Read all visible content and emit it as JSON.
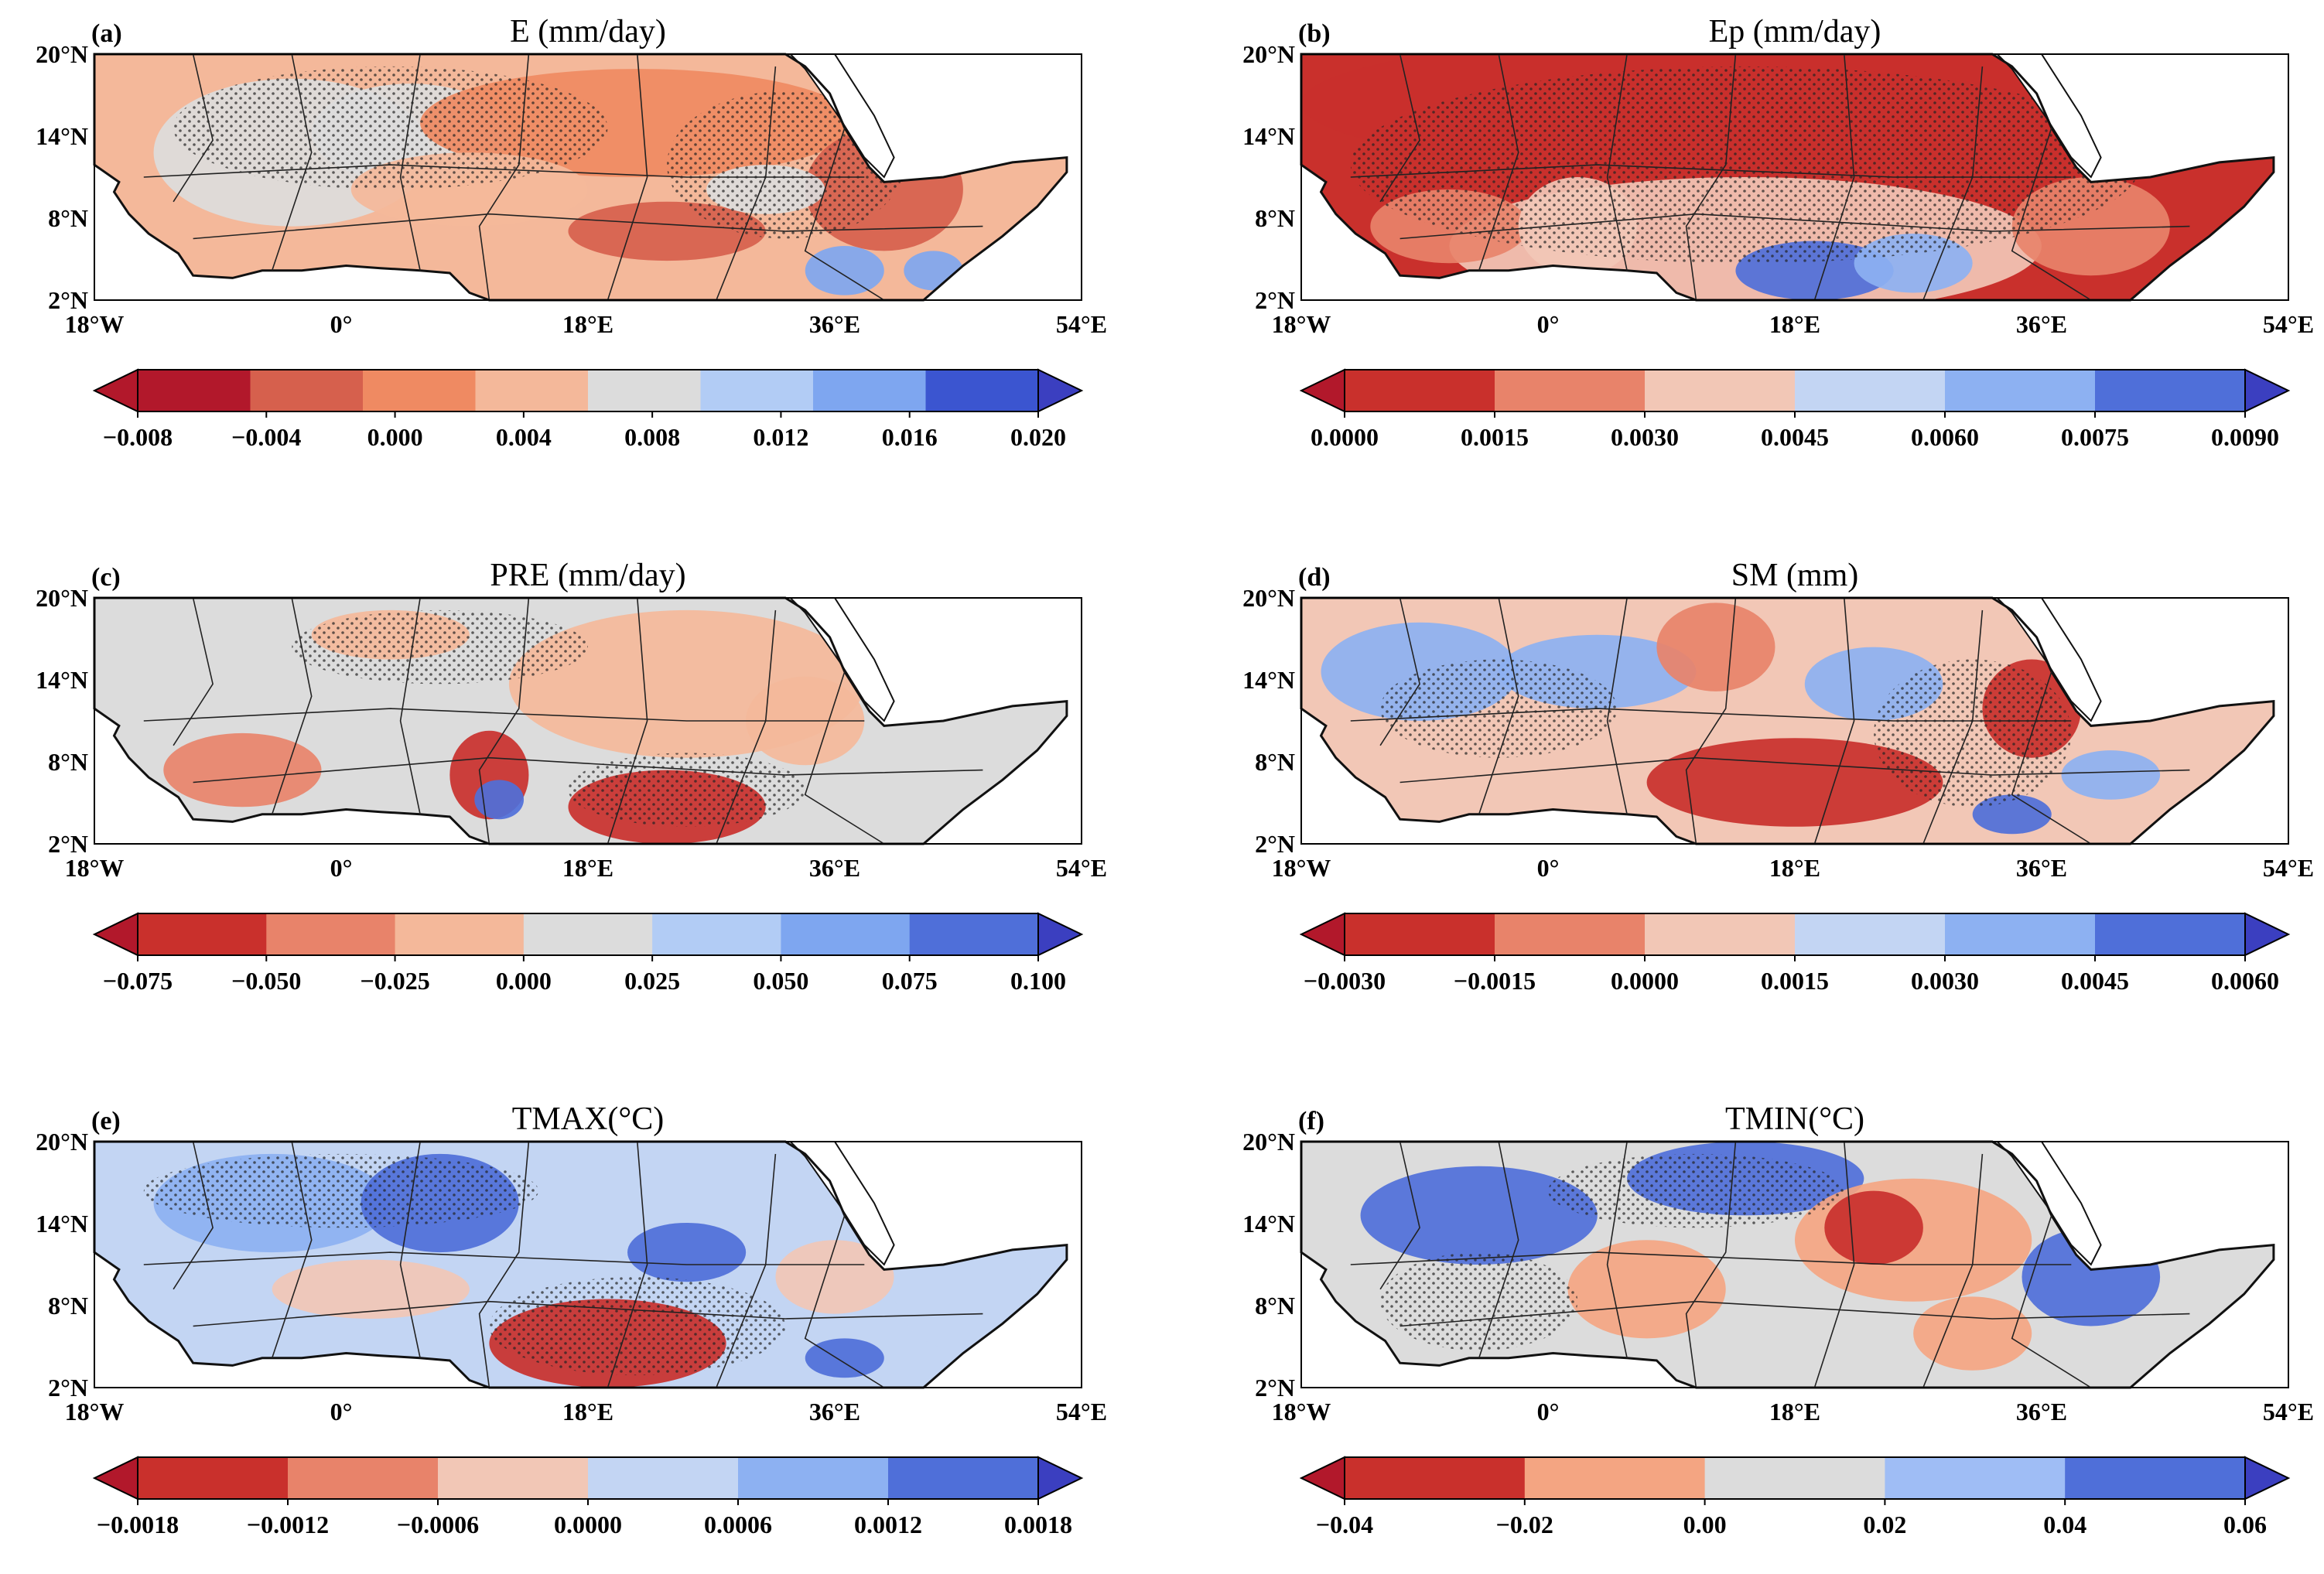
{
  "figure": {
    "map_extent": {
      "lon": [
        -18,
        54
      ],
      "lat": [
        2,
        20
      ]
    },
    "lat_ticks": [
      "20°N",
      "14°N",
      "8°N",
      "2°N"
    ],
    "lon_ticks": [
      "18°W",
      "0°",
      "18°E",
      "36°E",
      "54°E"
    ],
    "stippling": "dots mark statistically significant areas",
    "panels": [
      {
        "id": "a",
        "label": "(a)",
        "title": "E (mm/day)",
        "colorbar": {
          "ticks": [
            "−0.008",
            "−0.004",
            "0.000",
            "0.004",
            "0.008",
            "0.012",
            "0.016",
            "0.020"
          ],
          "colors": [
            "#b2182b",
            "#d6604d",
            "#ef8a62",
            "#f4b89a",
            "#dcdcdc",
            "#b2ccf5",
            "#7ea6f0",
            "#3b55d0"
          ],
          "extend_colors": [
            "#b2182b",
            "#3b3fc0"
          ]
        }
      },
      {
        "id": "b",
        "label": "(b)",
        "title": "Ep (mm/day)",
        "colorbar": {
          "ticks": [
            "0.0000",
            "0.0015",
            "0.0030",
            "0.0045",
            "0.0060",
            "0.0075",
            "0.0090"
          ],
          "colors": [
            "#c9302c",
            "#e8836a",
            "#f2c7b6",
            "#c3d5f3",
            "#8db1f2",
            "#4f6fd9"
          ],
          "extend_colors": [
            "#b2182b",
            "#3b3fc0"
          ]
        }
      },
      {
        "id": "c",
        "label": "(c)",
        "title": "PRE (mm/day)",
        "colorbar": {
          "ticks": [
            "−0.075",
            "−0.050",
            "−0.025",
            "0.000",
            "0.025",
            "0.050",
            "0.075",
            "0.100"
          ],
          "colors": [
            "#c9302c",
            "#e8836a",
            "#f4b89a",
            "#dcdcdc",
            "#b2ccf5",
            "#7ea6f0",
            "#4f6fd9"
          ],
          "extend_colors": [
            "#b2182b",
            "#3b3fc0"
          ]
        }
      },
      {
        "id": "d",
        "label": "(d)",
        "title": "SM (mm)",
        "colorbar": {
          "ticks": [
            "−0.0030",
            "−0.0015",
            "0.0000",
            "0.0015",
            "0.0030",
            "0.0045",
            "0.0060"
          ],
          "colors": [
            "#c9302c",
            "#e8836a",
            "#f2c7b6",
            "#c3d5f3",
            "#8db1f2",
            "#4f6fd9"
          ],
          "extend_colors": [
            "#b2182b",
            "#3b3fc0"
          ]
        }
      },
      {
        "id": "e",
        "label": "(e)",
        "title": "TMAX(°C)",
        "colorbar": {
          "ticks": [
            "−0.0018",
            "−0.0012",
            "−0.0006",
            "0.0000",
            "0.0006",
            "0.0012",
            "0.0018"
          ],
          "colors": [
            "#c9302c",
            "#e8836a",
            "#f2c7b6",
            "#c3d5f3",
            "#8db1f2",
            "#4f6fd9"
          ],
          "extend_colors": [
            "#b2182b",
            "#3b3fc0"
          ]
        }
      },
      {
        "id": "f",
        "label": "(f)",
        "title": "TMIN(°C)",
        "colorbar": {
          "ticks": [
            "−0.04",
            "−0.02",
            "0.00",
            "0.02",
            "0.04",
            "0.06"
          ],
          "colors": [
            "#c9302c",
            "#f4a582",
            "#dcdcdc",
            "#9fbdf5",
            "#4f6fd9"
          ],
          "extend_colors": [
            "#b2182b",
            "#3b3fc0"
          ]
        }
      }
    ]
  }
}
